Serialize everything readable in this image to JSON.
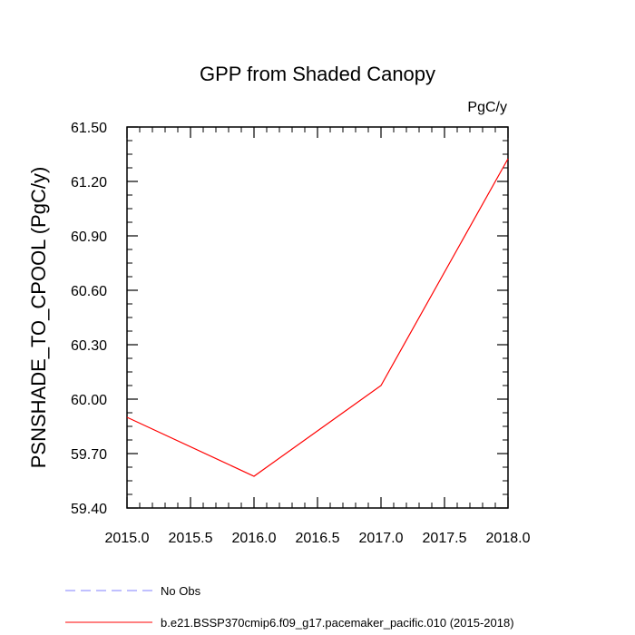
{
  "chart_data": {
    "type": "line",
    "title": "GPP from Shaded Canopy",
    "units_label": "PgC/y",
    "ylabel": "PSNSHADE_TO_CPOOL  (PgC/y)",
    "xlabel": "",
    "xlim": [
      2015.0,
      2018.0
    ],
    "ylim": [
      59.4,
      61.5
    ],
    "x_ticks": [
      "2015.0",
      "2015.5",
      "2016.0",
      "2016.5",
      "2017.0",
      "2017.5",
      "2018.0"
    ],
    "y_ticks": [
      "59.40",
      "59.70",
      "60.00",
      "60.30",
      "60.60",
      "60.90",
      "61.20",
      "61.50"
    ],
    "grid": false,
    "series": [
      {
        "name": "b.e21.BSSP370cmip6.f09_g17.pacemaker_pacific.010 (2015-2018)",
        "color": "#ff0000",
        "dash": "solid",
        "x": [
          2015,
          2016,
          2017,
          2018
        ],
        "y": [
          59.9,
          59.575,
          60.075,
          61.325
        ]
      }
    ],
    "legend": [
      {
        "label": "No Obs",
        "color": "#8080ff",
        "dash": "dashed"
      },
      {
        "label": "b.e21.BSSP370cmip6.f09_g17.pacemaker_pacific.010 (2015-2018)",
        "color": "#ff0000",
        "dash": "solid"
      }
    ],
    "legend_position": "bottom-left"
  }
}
